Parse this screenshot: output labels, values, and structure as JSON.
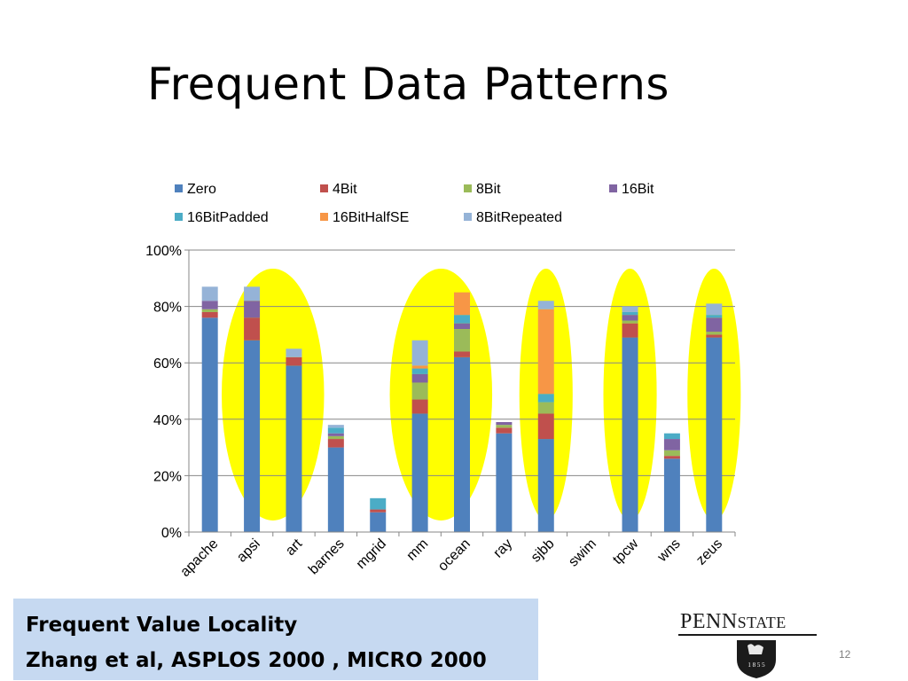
{
  "slide": {
    "title": "Frequent Data Patterns",
    "note_line1": "Frequent Value Locality",
    "note_line2": "Zhang et al,  ASPLOS 2000 , MICRO 2000",
    "logo_text_main": "PENN",
    "logo_text_second": "STATE",
    "logo_years": "1 8 5 5",
    "page_number": "12"
  },
  "colors": {
    "Zero": "#4f81bd",
    "4Bit": "#c0504d",
    "8Bit": "#9bbb59",
    "16Bit": "#8064a2",
    "16BitPadded": "#4bacc6",
    "16BitHalfSE": "#f79646",
    "8BitRepeated": "#95b3d7",
    "highlight": "#ffff00",
    "note_bg": "#c6d9f1"
  },
  "chart_data": {
    "type": "bar",
    "stacked": true,
    "title": "",
    "xlabel": "",
    "ylabel": "",
    "ylim": [
      0,
      100
    ],
    "y_ticks": [
      "0%",
      "20%",
      "40%",
      "60%",
      "80%",
      "100%"
    ],
    "grid": true,
    "legend_position": "top",
    "categories": [
      "apache",
      "apsi",
      "art",
      "barnes",
      "mgrid",
      "mm",
      "ocean",
      "ray",
      "sjbb",
      "swim",
      "tpcw",
      "wns",
      "zeus"
    ],
    "series": [
      {
        "name": "Zero",
        "values": [
          76,
          68,
          59,
          30,
          7,
          42,
          62,
          35,
          33,
          0,
          69,
          26,
          69
        ]
      },
      {
        "name": "4Bit",
        "values": [
          2,
          8,
          3,
          3,
          1,
          5,
          2,
          2,
          9,
          0,
          5,
          1,
          1
        ]
      },
      {
        "name": "8Bit",
        "values": [
          1,
          0,
          0,
          1,
          0,
          6,
          8,
          1,
          4,
          0,
          1,
          2,
          1
        ]
      },
      {
        "name": "16Bit",
        "values": [
          3,
          6,
          0,
          1,
          0,
          3,
          2,
          1,
          0,
          0,
          2,
          4,
          5
        ]
      },
      {
        "name": "16BitPadded",
        "values": [
          0,
          0,
          0,
          2,
          4,
          2,
          3,
          0,
          3,
          0,
          1,
          2,
          1
        ]
      },
      {
        "name": "16BitHalfSE",
        "values": [
          0,
          0,
          0,
          0,
          0,
          1,
          8,
          0,
          30,
          0,
          0,
          0,
          0
        ]
      },
      {
        "name": "8BitRepeated",
        "values": [
          5,
          5,
          3,
          1,
          0,
          9,
          0,
          0,
          3,
          0,
          2,
          0,
          4
        ]
      }
    ],
    "highlighted_groups": [
      [
        "apsi",
        "art"
      ],
      [
        "mm",
        "ocean"
      ],
      [
        "sjbb"
      ],
      [
        "tpcw"
      ],
      [
        "zeus"
      ]
    ]
  }
}
